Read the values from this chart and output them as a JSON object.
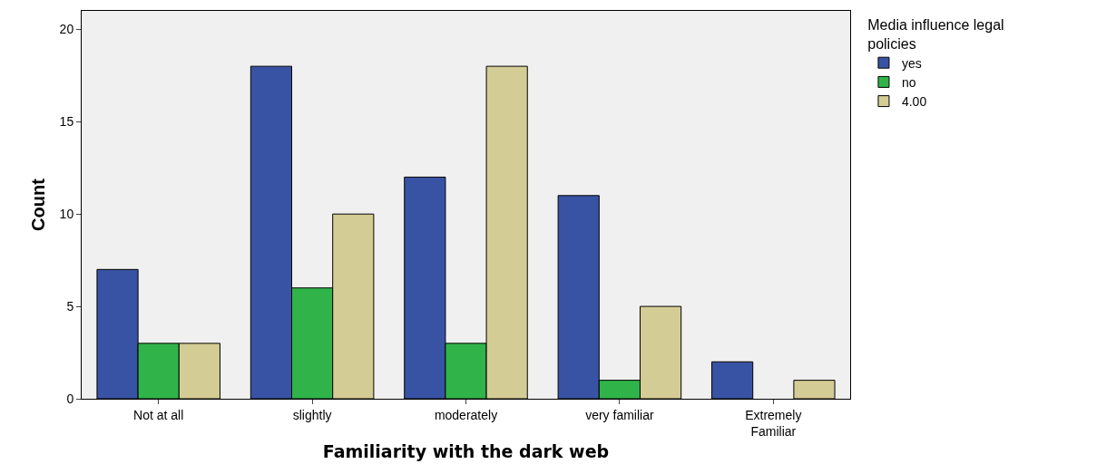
{
  "chart_data": {
    "type": "bar",
    "xlabel": "Familiarity with the dark web",
    "ylabel": "Count",
    "legend_title": "Media influence legal\npolicies",
    "categories": [
      "Not at all",
      "slightly",
      "moderately",
      "very familiar",
      "Extremely\nFamiliar"
    ],
    "series": [
      {
        "name": "yes",
        "color": "#3953a4",
        "values": [
          7,
          18,
          12,
          11,
          2
        ]
      },
      {
        "name": "no",
        "color": "#30b44a",
        "values": [
          3,
          6,
          3,
          1,
          null
        ]
      },
      {
        "name": "4.00",
        "color": "#d4cc95",
        "values": [
          3,
          10,
          18,
          5,
          1
        ]
      }
    ],
    "ylim": [
      0,
      21
    ],
    "yticks": [
      0,
      5,
      10,
      15,
      20
    ],
    "grid": false,
    "legend": "top right"
  }
}
